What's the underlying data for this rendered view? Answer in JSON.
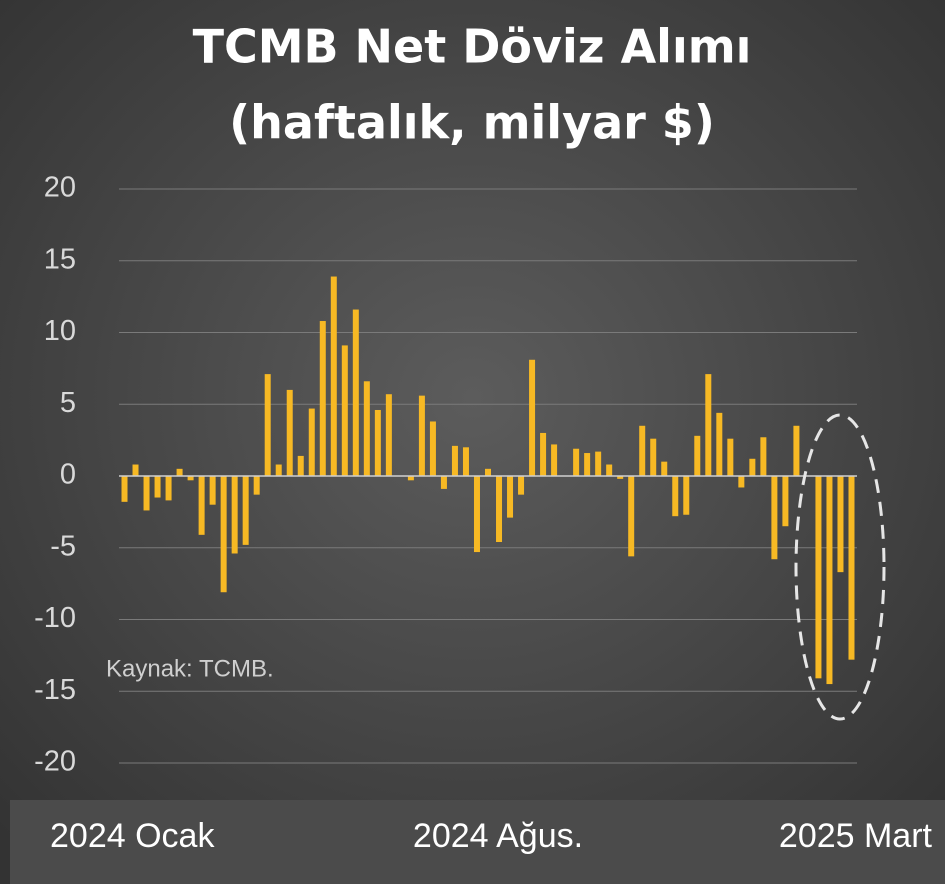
{
  "chart_data": {
    "type": "bar",
    "title": "TCMB Net Döviz Alımı",
    "subtitle": "(haftalık, milyar $)",
    "annotation": "Kaynak: TCMB.",
    "color": "#f7b924",
    "grid": true,
    "ylim": [
      -20,
      20
    ],
    "yticks": [
      -20,
      -15,
      -10,
      -5,
      0,
      5,
      10,
      15,
      20
    ],
    "categories": [
      "2024 Ocak",
      null,
      null,
      null,
      null,
      null,
      null,
      null,
      null,
      null,
      null,
      null,
      null,
      null,
      null,
      null,
      null,
      null,
      null,
      null,
      null,
      null,
      null,
      null,
      null,
      null,
      null,
      null,
      null,
      null,
      null,
      null,
      "2024 Ağus.",
      null,
      null,
      null,
      null,
      null,
      null,
      null,
      null,
      null,
      null,
      null,
      null,
      null,
      null,
      null,
      null,
      null,
      null,
      null,
      null,
      null,
      null,
      null,
      null,
      null,
      null,
      null,
      null,
      null,
      null,
      null,
      null,
      null,
      "2025 Mart"
    ],
    "values": [
      -1.8,
      0.8,
      -2.4,
      -1.5,
      -1.7,
      0.5,
      -0.3,
      -4.1,
      -2.0,
      -8.1,
      -5.4,
      -4.8,
      -1.3,
      7.1,
      0.8,
      6.0,
      1.4,
      4.7,
      10.8,
      13.9,
      9.1,
      11.6,
      6.6,
      4.6,
      5.7,
      0,
      -0.3,
      5.6,
      3.8,
      -0.9,
      2.1,
      2.0,
      -5.3,
      0.5,
      -4.6,
      -2.9,
      -1.3,
      8.1,
      3.0,
      2.2,
      0,
      1.9,
      1.6,
      1.7,
      0.8,
      -0.2,
      -5.6,
      3.5,
      2.6,
      1.0,
      -2.8,
      -2.7,
      2.8,
      7.1,
      4.4,
      2.6,
      -0.8,
      1.2,
      2.7,
      -5.8,
      -3.5,
      3.5,
      0,
      -14.1,
      -14.5,
      -6.7,
      -12.8
    ]
  }
}
